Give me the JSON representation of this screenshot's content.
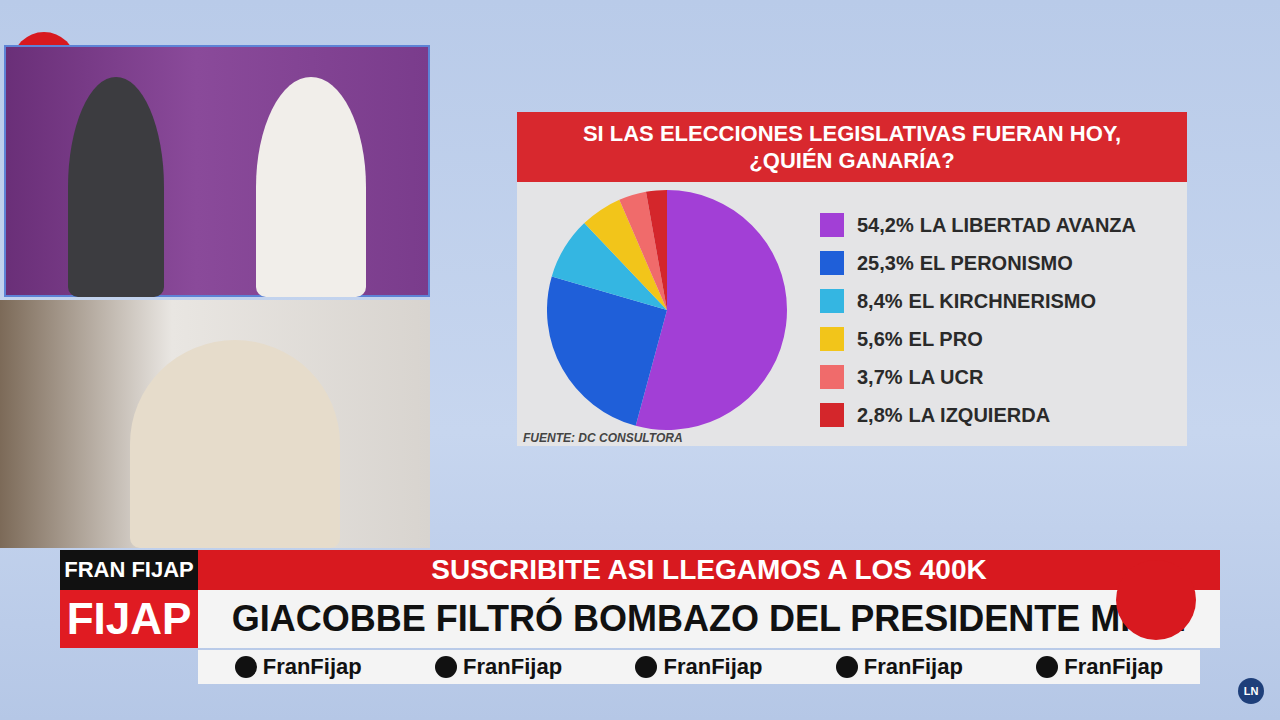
{
  "chart_data": {
    "type": "pie",
    "title": "SI LAS ELECCIONES LEGISLATIVAS FUERAN HOY, ¿QUIÉN GANARÍA?",
    "source": "FUENTE: DC CONSULTORA",
    "categories": [
      "LA LIBERTAD AVANZA",
      "EL PERONISMO",
      "EL KIRCHNERISMO",
      "EL PRO",
      "LA UCR",
      "LA IZQUIERDA"
    ],
    "values": [
      54.2,
      25.3,
      8.4,
      5.6,
      3.7,
      2.8
    ],
    "value_labels": [
      "54,2%",
      "25,3%",
      "8,4%",
      "5,6%",
      "3,7%",
      "2,8%"
    ],
    "colors": [
      "#a23fd6",
      "#1f5fd9",
      "#34b6e2",
      "#f2c51a",
      "#f06b6b",
      "#d4262b"
    ],
    "legend": "right"
  },
  "overlay": {
    "brand": [
      "FRAN FIJAP",
      "FIJAP"
    ],
    "headlines": [
      "SUSCRIBITE ASI LLEGAMOS A LOS 400K",
      "GIACOBBE FILTRÓ BOMBAZO DEL PRESIDENTE MILEI"
    ],
    "socials": [
      "FranFijap",
      "FranFijap",
      "FranFijap",
      "FranFijap",
      "FranFijap"
    ],
    "corner_logo": "LN"
  }
}
